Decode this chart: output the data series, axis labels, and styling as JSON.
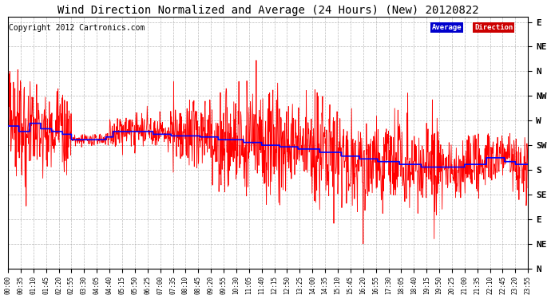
{
  "title": "Wind Direction Normalized and Average (24 Hours) (New) 20120822",
  "copyright": "Copyright 2012 Cartronics.com",
  "legend_average_label": "Average",
  "legend_direction_label": "Direction",
  "legend_avg_bg": "#0000cc",
  "legend_dir_bg": "#cc0000",
  "line_color_direction": "#ff0000",
  "line_color_average": "#0000ff",
  "background_color": "#ffffff",
  "grid_color": "#aaaaaa",
  "title_fontsize": 10,
  "copyright_fontsize": 7,
  "ytick_labels": [
    "E",
    "NE",
    "N",
    "NW",
    "W",
    "SW",
    "S",
    "SE",
    "E",
    "NE",
    "N"
  ],
  "ytick_values": [
    0,
    45,
    90,
    135,
    180,
    225,
    270,
    315,
    360,
    405,
    450
  ],
  "ylim_top": 450,
  "ylim_bottom": -10,
  "xlim_min": 0,
  "xlim_max": 1435,
  "xtick_step": 35,
  "num_points": 1440,
  "figwidth": 6.9,
  "figheight": 3.75,
  "dpi": 100
}
